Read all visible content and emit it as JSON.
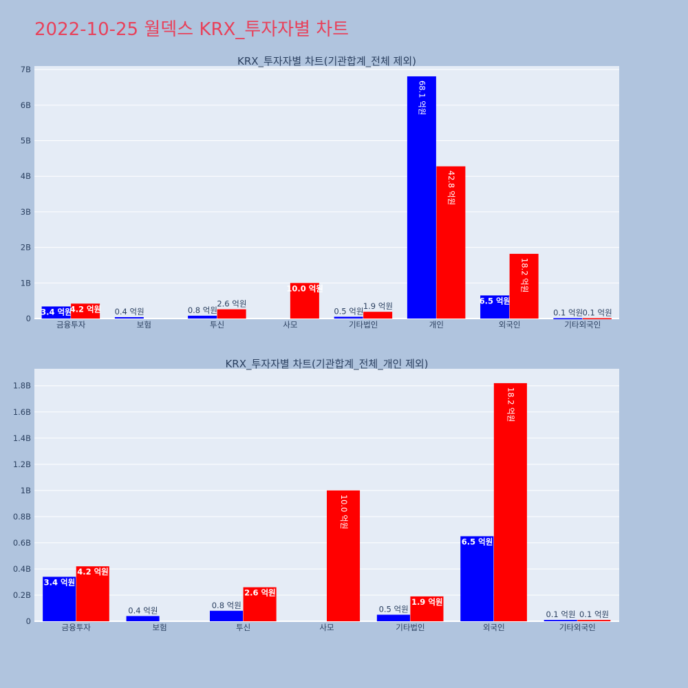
{
  "page": {
    "title": "2022-10-25 월덱스 KRX_투자자별 차트"
  },
  "colors": {
    "buy": "#0000ff",
    "sell": "#ff0000",
    "plot_bg": "#e5ecf6",
    "paper_bg": "#b0c4de",
    "grid": "#ffffff",
    "text": "#2a3f5f"
  },
  "chart_data": [
    {
      "type": "bar",
      "title": "KRX_투자자별 차트(기관합계_전체 제외)",
      "categories": [
        "금융투자",
        "보험",
        "투신",
        "사모",
        "기타법인",
        "개인",
        "외국인",
        "기타외국인"
      ],
      "series": [
        {
          "color": "#0000ff",
          "values": [
            0.34,
            0.04,
            0.08,
            0,
            0.05,
            6.81,
            0.65,
            0.01
          ],
          "labels": [
            "3.4 억원",
            "0.4 억원",
            "0.8 억원",
            "",
            "0.5 억원",
            "68.1 억원",
            "6.5 억원",
            "0.1 억원"
          ]
        },
        {
          "color": "#ff0000",
          "values": [
            0.42,
            0,
            0.26,
            1.0,
            0.19,
            4.28,
            1.82,
            0.01
          ],
          "labels": [
            "4.2 억원",
            "",
            "2.6 억원",
            "10.0 억원",
            "1.9 억원",
            "42.8 억원",
            "18.2 억원",
            "0.1 억원"
          ]
        }
      ],
      "ylim": [
        0,
        7.1
      ],
      "yticks": [
        0,
        1,
        2,
        3,
        4,
        5,
        6,
        7
      ],
      "ytick_labels": [
        "0",
        "1B",
        "2B",
        "3B",
        "4B",
        "5B",
        "6B",
        "7B"
      ],
      "grid": true,
      "legend": "none"
    },
    {
      "type": "bar",
      "title": "KRX_투자자별 차트(기관합계_전체_개인 제외)",
      "categories": [
        "금융투자",
        "보험",
        "투신",
        "사모",
        "기타법인",
        "외국인",
        "기타외국인"
      ],
      "series": [
        {
          "color": "#0000ff",
          "values": [
            0.34,
            0.04,
            0.08,
            0,
            0.05,
            0.65,
            0.01
          ],
          "labels": [
            "3.4 억원",
            "0.4 억원",
            "0.8 억원",
            "",
            "0.5 억원",
            "6.5 억원",
            "0.1 억원"
          ]
        },
        {
          "color": "#ff0000",
          "values": [
            0.42,
            0,
            0.26,
            1.0,
            0.19,
            1.82,
            0.01
          ],
          "labels": [
            "4.2 억원",
            "",
            "2.6 억원",
            "10.0 억원",
            "1.9 억원",
            "18.2 억원",
            "0.1 억원"
          ]
        }
      ],
      "ylim": [
        0,
        1.93
      ],
      "yticks": [
        0,
        0.2,
        0.4,
        0.6,
        0.8,
        1.0,
        1.2,
        1.4,
        1.6,
        1.8
      ],
      "ytick_labels": [
        "0",
        "0.2B",
        "0.4B",
        "0.6B",
        "0.8B",
        "1B",
        "1.2B",
        "1.4B",
        "1.6B",
        "1.8B"
      ],
      "grid": true,
      "legend": "none"
    }
  ]
}
